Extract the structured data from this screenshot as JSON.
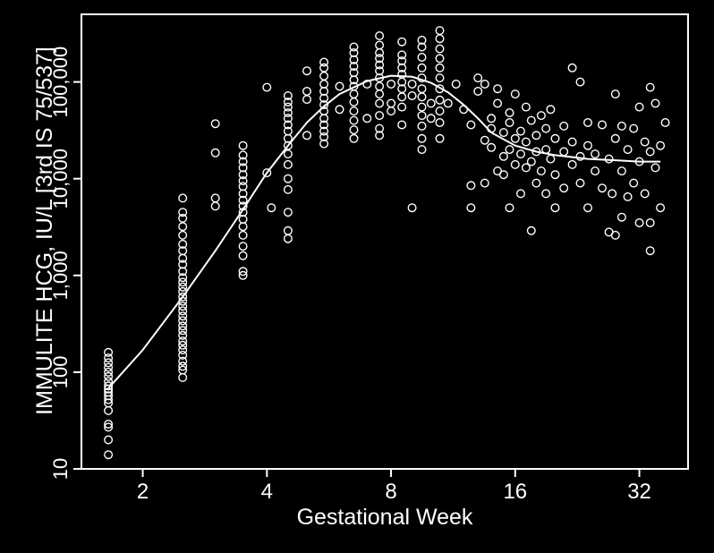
{
  "colors": {
    "background": "#000000",
    "foreground": "#ffffff"
  },
  "chart_data": {
    "type": "scatter",
    "title": "",
    "xlabel": "Gestational Week",
    "ylabel": "IMMULITE HCG, IU/L [3rd IS 75/537]",
    "xscale": "log2",
    "yscale": "log10",
    "xlim": [
      1.42,
      42.0
    ],
    "ylim": [
      10,
      500000
    ],
    "xticks": [
      2,
      4,
      8,
      16,
      32
    ],
    "xtick_labels": [
      "2",
      "4",
      "8",
      "16",
      "32"
    ],
    "yticks": [
      10,
      100,
      1000,
      10000,
      100000
    ],
    "ytick_labels": [
      "10",
      "100",
      "1,000",
      "10,000",
      "100,000"
    ],
    "grid": false,
    "legend": "none",
    "points": [
      [
        1.65,
        14
      ],
      [
        1.65,
        20
      ],
      [
        1.65,
        27
      ],
      [
        1.65,
        29
      ],
      [
        1.65,
        40
      ],
      [
        1.65,
        48
      ],
      [
        1.65,
        52
      ],
      [
        1.65,
        57
      ],
      [
        1.65,
        62
      ],
      [
        1.65,
        67
      ],
      [
        1.65,
        72
      ],
      [
        1.65,
        80
      ],
      [
        1.65,
        90
      ],
      [
        1.65,
        100
      ],
      [
        1.65,
        112
      ],
      [
        1.65,
        125
      ],
      [
        1.65,
        140
      ],
      [
        1.65,
        160
      ],
      [
        2.5,
        88
      ],
      [
        2.5,
        105
      ],
      [
        2.5,
        115
      ],
      [
        2.5,
        130
      ],
      [
        2.5,
        150
      ],
      [
        2.5,
        170
      ],
      [
        2.5,
        190
      ],
      [
        2.5,
        210
      ],
      [
        2.5,
        240
      ],
      [
        2.5,
        270
      ],
      [
        2.5,
        300
      ],
      [
        2.5,
        340
      ],
      [
        2.5,
        380
      ],
      [
        2.5,
        430
      ],
      [
        2.5,
        480
      ],
      [
        2.5,
        540
      ],
      [
        2.5,
        600
      ],
      [
        2.5,
        680
      ],
      [
        2.5,
        760
      ],
      [
        2.5,
        850
      ],
      [
        2.5,
        950
      ],
      [
        2.5,
        1100
      ],
      [
        2.5,
        1300
      ],
      [
        2.5,
        1500
      ],
      [
        2.5,
        1800
      ],
      [
        2.5,
        2100
      ],
      [
        2.5,
        2600
      ],
      [
        2.5,
        3200
      ],
      [
        2.5,
        3900
      ],
      [
        2.5,
        4500
      ],
      [
        2.5,
        6300
      ],
      [
        3.0,
        5200
      ],
      [
        3.0,
        6300
      ],
      [
        3.0,
        18500
      ],
      [
        3.0,
        37000
      ],
      [
        3.5,
        1000
      ],
      [
        3.5,
        1100
      ],
      [
        3.5,
        1600
      ],
      [
        3.5,
        2000
      ],
      [
        3.5,
        2600
      ],
      [
        3.5,
        3200
      ],
      [
        3.5,
        3800
      ],
      [
        3.5,
        4500
      ],
      [
        3.5,
        5200
      ],
      [
        3.5,
        6000
      ],
      [
        3.5,
        7000
      ],
      [
        3.5,
        8300
      ],
      [
        3.5,
        9500
      ],
      [
        3.5,
        11000
      ],
      [
        3.5,
        13000
      ],
      [
        3.5,
        15000
      ],
      [
        3.5,
        17500
      ],
      [
        3.5,
        22000
      ],
      [
        4.0,
        11500
      ],
      [
        4.0,
        88000
      ],
      [
        4.1,
        5000
      ],
      [
        4.5,
        2400
      ],
      [
        4.5,
        2900
      ],
      [
        4.5,
        4500
      ],
      [
        4.5,
        7700
      ],
      [
        4.5,
        10000
      ],
      [
        4.5,
        14000
      ],
      [
        4.5,
        18000
      ],
      [
        4.5,
        22000
      ],
      [
        4.5,
        26000
      ],
      [
        4.5,
        31000
      ],
      [
        4.5,
        36000
      ],
      [
        4.5,
        42000
      ],
      [
        4.5,
        48000
      ],
      [
        4.5,
        55000
      ],
      [
        4.5,
        62000
      ],
      [
        4.5,
        72000
      ],
      [
        5.0,
        28000
      ],
      [
        5.0,
        66000
      ],
      [
        5.0,
        80000
      ],
      [
        5.0,
        130000
      ],
      [
        5.5,
        23000
      ],
      [
        5.5,
        27000
      ],
      [
        5.5,
        31000
      ],
      [
        5.5,
        36000
      ],
      [
        5.5,
        42000
      ],
      [
        5.5,
        50000
      ],
      [
        5.5,
        58000
      ],
      [
        5.5,
        68000
      ],
      [
        5.5,
        80000
      ],
      [
        5.5,
        95000
      ],
      [
        5.5,
        115000
      ],
      [
        5.5,
        140000
      ],
      [
        5.5,
        160000
      ],
      [
        6.0,
        52000
      ],
      [
        6.0,
        90000
      ],
      [
        6.5,
        26000
      ],
      [
        6.5,
        32000
      ],
      [
        6.5,
        40000
      ],
      [
        6.5,
        50000
      ],
      [
        6.5,
        62000
      ],
      [
        6.5,
        75000
      ],
      [
        6.5,
        90000
      ],
      [
        6.5,
        105000
      ],
      [
        6.5,
        125000
      ],
      [
        6.5,
        145000
      ],
      [
        6.5,
        170000
      ],
      [
        6.5,
        200000
      ],
      [
        6.5,
        230000
      ],
      [
        7.0,
        42000
      ],
      [
        7.0,
        95000
      ],
      [
        7.5,
        28000
      ],
      [
        7.5,
        33000
      ],
      [
        7.5,
        45000
      ],
      [
        7.5,
        60000
      ],
      [
        7.5,
        75000
      ],
      [
        7.5,
        90000
      ],
      [
        7.5,
        110000
      ],
      [
        7.5,
        130000
      ],
      [
        7.5,
        150000
      ],
      [
        7.5,
        175000
      ],
      [
        7.5,
        200000
      ],
      [
        7.5,
        240000
      ],
      [
        7.5,
        300000
      ],
      [
        8.0,
        50000
      ],
      [
        8.0,
        60000
      ],
      [
        8.0,
        95000
      ],
      [
        8.5,
        36000
      ],
      [
        8.5,
        55000
      ],
      [
        8.5,
        70000
      ],
      [
        8.5,
        85000
      ],
      [
        8.5,
        100000
      ],
      [
        8.5,
        120000
      ],
      [
        8.5,
        140000
      ],
      [
        8.5,
        165000
      ],
      [
        8.5,
        190000
      ],
      [
        8.5,
        260000
      ],
      [
        9.0,
        5000
      ],
      [
        9.0,
        72000
      ],
      [
        9.0,
        95000
      ],
      [
        9.5,
        20000
      ],
      [
        9.5,
        26000
      ],
      [
        9.5,
        35000
      ],
      [
        9.5,
        45000
      ],
      [
        9.5,
        55000
      ],
      [
        9.5,
        70000
      ],
      [
        9.5,
        85000
      ],
      [
        9.5,
        110000
      ],
      [
        9.5,
        140000
      ],
      [
        9.5,
        180000
      ],
      [
        9.5,
        230000
      ],
      [
        9.5,
        270000
      ],
      [
        10.0,
        42000
      ],
      [
        10.0,
        60000
      ],
      [
        10.5,
        26000
      ],
      [
        10.5,
        38000
      ],
      [
        10.5,
        50000
      ],
      [
        10.5,
        65000
      ],
      [
        10.5,
        85000
      ],
      [
        10.5,
        110000
      ],
      [
        10.5,
        140000
      ],
      [
        10.5,
        175000
      ],
      [
        10.5,
        220000
      ],
      [
        10.5,
        280000
      ],
      [
        10.5,
        340000
      ],
      [
        11.0,
        60000
      ],
      [
        11.5,
        95000
      ],
      [
        12.0,
        52000
      ],
      [
        12.5,
        36000
      ],
      [
        12.5,
        5000
      ],
      [
        12.5,
        8500
      ],
      [
        13.0,
        110000
      ],
      [
        13.0,
        80000
      ],
      [
        13.5,
        95000
      ],
      [
        13.5,
        25000
      ],
      [
        13.5,
        9000
      ],
      [
        14.0,
        42000
      ],
      [
        14.0,
        33000
      ],
      [
        14.0,
        21000
      ],
      [
        14.5,
        60000
      ],
      [
        14.5,
        85000
      ],
      [
        14.5,
        12000
      ],
      [
        15.0,
        30000
      ],
      [
        15.0,
        17000
      ],
      [
        15.0,
        11000
      ],
      [
        15.5,
        48000
      ],
      [
        15.5,
        38000
      ],
      [
        15.5,
        20000
      ],
      [
        15.5,
        5000
      ],
      [
        16.0,
        75000
      ],
      [
        16.0,
        26000
      ],
      [
        16.0,
        14000
      ],
      [
        16.5,
        31000
      ],
      [
        16.5,
        18000
      ],
      [
        16.5,
        7000
      ],
      [
        17.0,
        55000
      ],
      [
        17.0,
        24000
      ],
      [
        17.0,
        13000
      ],
      [
        17.5,
        40000
      ],
      [
        17.5,
        15000
      ],
      [
        17.5,
        2900
      ],
      [
        18.0,
        28000
      ],
      [
        18.0,
        19000
      ],
      [
        18.0,
        9000
      ],
      [
        18.5,
        45000
      ],
      [
        18.5,
        12000
      ],
      [
        19.0,
        33000
      ],
      [
        19.0,
        20000
      ],
      [
        19.0,
        7000
      ],
      [
        19.5,
        52000
      ],
      [
        19.5,
        16000
      ],
      [
        20.0,
        26000
      ],
      [
        20.0,
        11000
      ],
      [
        20.0,
        5000
      ],
      [
        21.0,
        35000
      ],
      [
        21.0,
        19000
      ],
      [
        21.0,
        8000
      ],
      [
        22.0,
        140000
      ],
      [
        22.0,
        24000
      ],
      [
        22.0,
        14000
      ],
      [
        23.0,
        100000
      ],
      [
        23.0,
        17000
      ],
      [
        23.0,
        9000
      ],
      [
        24.0,
        38000
      ],
      [
        24.0,
        22000
      ],
      [
        24.0,
        5000
      ],
      [
        25.0,
        18000
      ],
      [
        25.0,
        12000
      ],
      [
        26.0,
        36000
      ],
      [
        26.0,
        8000
      ],
      [
        27.0,
        16000
      ],
      [
        27.0,
        2800
      ],
      [
        27.5,
        7000
      ],
      [
        28.0,
        75000
      ],
      [
        28.0,
        26000
      ],
      [
        28.0,
        2600
      ],
      [
        29.0,
        35000
      ],
      [
        29.0,
        12000
      ],
      [
        29.0,
        4000
      ],
      [
        30.0,
        20000
      ],
      [
        30.0,
        6500
      ],
      [
        31.0,
        33000
      ],
      [
        31.0,
        9000
      ],
      [
        32.0,
        55000
      ],
      [
        32.0,
        15000
      ],
      [
        32.0,
        3500
      ],
      [
        33.0,
        24000
      ],
      [
        33.0,
        7000
      ],
      [
        34.0,
        88000
      ],
      [
        34.0,
        19000
      ],
      [
        34.0,
        3500
      ],
      [
        34.0,
        1800
      ],
      [
        35.0,
        60000
      ],
      [
        35.0,
        13000
      ],
      [
        36.0,
        22000
      ],
      [
        36.0,
        5000
      ],
      [
        37.0,
        38000
      ]
    ],
    "trend_line": [
      [
        1.65,
        68
      ],
      [
        2.0,
        170
      ],
      [
        2.5,
        600
      ],
      [
        3.0,
        1800
      ],
      [
        3.5,
        4800
      ],
      [
        4.0,
        11500
      ],
      [
        4.5,
        22000
      ],
      [
        5.0,
        38000
      ],
      [
        5.5,
        56000
      ],
      [
        6.0,
        75000
      ],
      [
        7.0,
        102000
      ],
      [
        8.0,
        116000
      ],
      [
        9.0,
        113000
      ],
      [
        10.0,
        98000
      ],
      [
        11.0,
        78000
      ],
      [
        12.0,
        58000
      ],
      [
        13.0,
        42000
      ],
      [
        14.0,
        30000
      ],
      [
        16.0,
        22000
      ],
      [
        18.0,
        19000
      ],
      [
        20.0,
        17500
      ],
      [
        24.0,
        16000
      ],
      [
        28.0,
        15500
      ],
      [
        32.0,
        15000
      ],
      [
        36.0,
        15000
      ]
    ]
  }
}
